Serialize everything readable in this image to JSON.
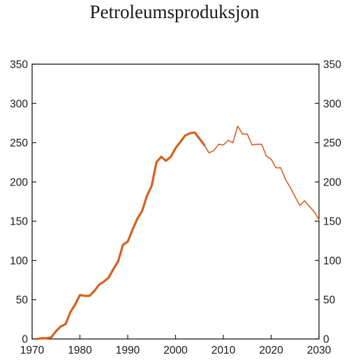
{
  "chart_data": {
    "type": "line",
    "title": "Petroleumsproduksjon",
    "xlabel": "",
    "ylabel": "",
    "xlim": [
      1970,
      2030
    ],
    "ylim": [
      0,
      350
    ],
    "x_ticks": [
      1970,
      1980,
      1990,
      2000,
      2010,
      2020,
      2030
    ],
    "y_ticks": [
      0,
      50,
      100,
      150,
      200,
      250,
      300,
      350
    ],
    "grid": false,
    "series_color": "#D4611F",
    "series": [
      {
        "segment": "historical",
        "line_weight": "thick",
        "x": [
          1971,
          1972,
          1973,
          1974,
          1975,
          1976,
          1977,
          1978,
          1979,
          1980,
          1981,
          1982,
          1983,
          1984,
          1985,
          1986,
          1987,
          1988,
          1989,
          1990,
          1991,
          1992,
          1993,
          1994,
          1995,
          1996,
          1997,
          1998,
          1999,
          2000,
          2001,
          2002,
          2003,
          2004,
          2005,
          2006
        ],
        "values": [
          0,
          1,
          1,
          2,
          10,
          16,
          19,
          34,
          44,
          56,
          55,
          55,
          61,
          69,
          73,
          78,
          89,
          99,
          120,
          124,
          139,
          153,
          163,
          182,
          195,
          225,
          232,
          227,
          232,
          243,
          251,
          259,
          262,
          263,
          255,
          247
        ]
      },
      {
        "segment": "projection",
        "line_weight": "thin",
        "x": [
          2006,
          2007,
          2008,
          2009,
          2010,
          2011,
          2012,
          2013,
          2014,
          2015,
          2016,
          2017,
          2018,
          2019,
          2020,
          2021,
          2022,
          2023,
          2024,
          2025,
          2026,
          2027,
          2028,
          2029,
          2030
        ],
        "values": [
          247,
          237,
          240,
          248,
          247,
          253,
          250,
          271,
          261,
          261,
          247,
          248,
          248,
          233,
          229,
          218,
          218,
          203,
          193,
          181,
          170,
          176,
          169,
          162,
          152
        ]
      }
    ]
  }
}
